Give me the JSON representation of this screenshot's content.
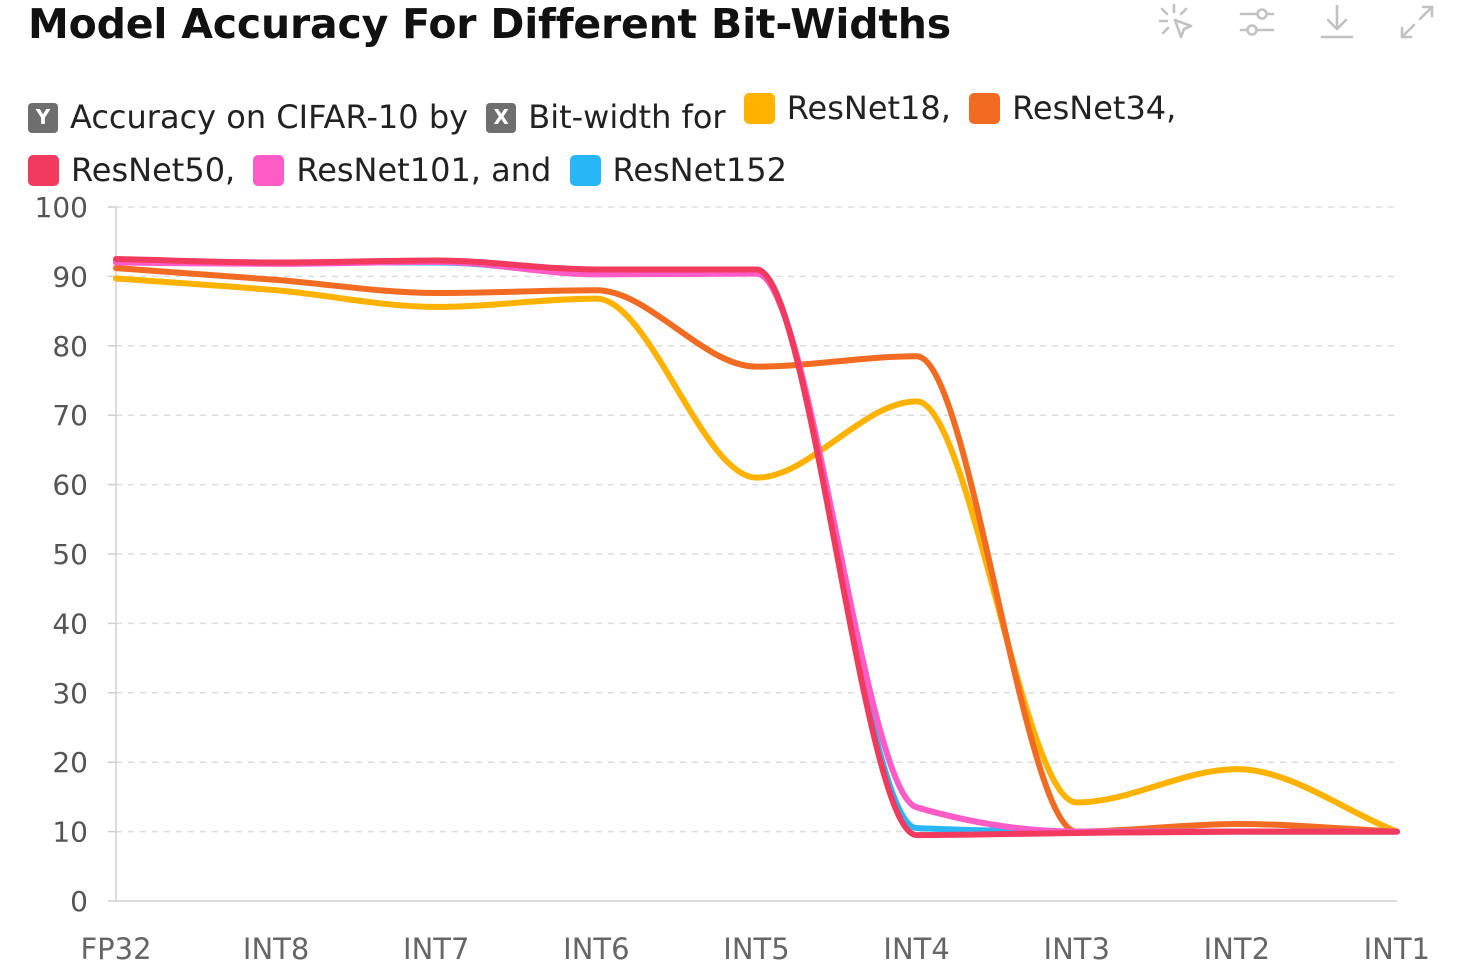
{
  "title": "Model Accuracy For Different Bit-Widths",
  "toolbar": {
    "icons": [
      "sparkle-cursor-icon",
      "sliders-icon",
      "download-icon",
      "expand-icon"
    ]
  },
  "legend": {
    "y_badge": "Y",
    "y_text": "Accuracy on CIFAR-10 by",
    "x_badge": "X",
    "x_text": "Bit-width for",
    "series": [
      {
        "text": "ResNet18,",
        "color": "#ffb300"
      },
      {
        "text": "ResNet34,",
        "color": "#f26b22"
      },
      {
        "text": "ResNet50,",
        "color": "#f23a5e"
      },
      {
        "text": "ResNet101, and",
        "color": "#ff5cc8"
      },
      {
        "text": "ResNet152",
        "color": "#29b6f6"
      }
    ]
  },
  "chart_data": {
    "type": "line",
    "categories": [
      "FP32",
      "INT8",
      "INT7",
      "INT6",
      "INT5",
      "INT4",
      "INT3",
      "INT2",
      "INT1"
    ],
    "ylim": [
      0,
      100
    ],
    "yticks": [
      "0",
      "10",
      "20",
      "30",
      "40",
      "50",
      "60",
      "70",
      "80",
      "90",
      "100"
    ],
    "grid": true,
    "series": [
      {
        "name": "ResNet18",
        "color": "#ffb300",
        "values": [
          89.7,
          88,
          85.6,
          86.8,
          61,
          72,
          14.2,
          19,
          10
        ]
      },
      {
        "name": "ResNet34",
        "color": "#f26b22",
        "values": [
          91.2,
          89.5,
          87.6,
          88,
          77,
          78.5,
          10,
          11.1,
          10
        ]
      },
      {
        "name": "ResNet152",
        "color": "#29b6f6",
        "values": [
          92.3,
          92,
          92,
          90.5,
          91,
          10.5,
          10,
          10,
          10
        ]
      },
      {
        "name": "ResNet101",
        "color": "#ff5cc8",
        "values": [
          92,
          91.8,
          92.1,
          90.3,
          90.4,
          13.5,
          10,
          10,
          10
        ]
      },
      {
        "name": "ResNet50",
        "color": "#f23a5e",
        "values": [
          92.5,
          92,
          92.3,
          91,
          91,
          9.5,
          9.8,
          10,
          10
        ]
      }
    ]
  }
}
